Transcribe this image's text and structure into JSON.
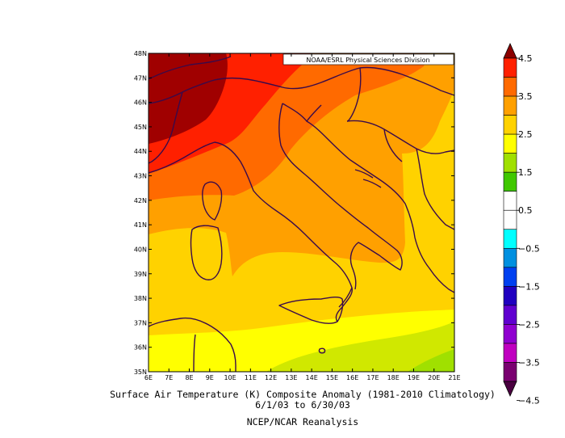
{
  "credit": "NOAA/ESRL Physical Sciences Division",
  "caption": {
    "title": "Surface Air Temperature (K) Composite Anomaly (1981-2010 Climatology)",
    "dates": "6/1/03  to 6/30/03",
    "source": "NCEP/NCAR Reanalysis"
  },
  "axes": {
    "lon_labels": [
      "6E",
      "7E",
      "8E",
      "9E",
      "10E",
      "11E",
      "12E",
      "13E",
      "14E",
      "15E",
      "16E",
      "17E",
      "18E",
      "19E",
      "20E",
      "21E"
    ],
    "lat_labels": [
      "35N",
      "36N",
      "37N",
      "38N",
      "39N",
      "40N",
      "41N",
      "42N",
      "43N",
      "44N",
      "45N",
      "46N",
      "47N",
      "48N"
    ],
    "lon_range": [
      6,
      21
    ],
    "lat_range": [
      35,
      48
    ]
  },
  "colorbar": {
    "labels": [
      "4.5",
      "3.5",
      "2.5",
      "1.5",
      "0.5",
      "-0.5",
      "-1.5",
      "-2.5",
      "-3.5",
      "-4.5"
    ],
    "colors_top_to_bottom": [
      "#8b0000",
      "#ff2000",
      "#ff6a00",
      "#ffa000",
      "#ffd200",
      "#ffff00",
      "#a0e000",
      "#40c800",
      "#ffffff",
      "#ffffff",
      "#00ffff",
      "#0090e0",
      "#0040f0",
      "#2000c0",
      "#6000d0",
      "#9000d0",
      "#c000c0",
      "#7a0070",
      "#4a0040"
    ]
  }
}
